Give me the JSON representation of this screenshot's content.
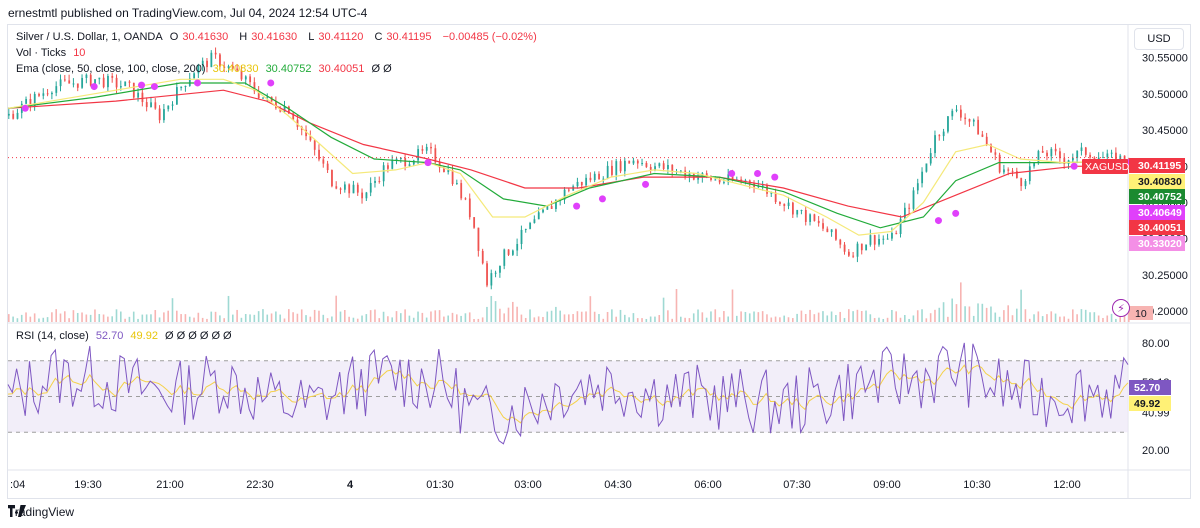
{
  "header": {
    "publisher": "ernestmtl published on TradingView.com, Jul 04, 2024 12:54 UTC-4"
  },
  "currency_button": "USD",
  "footer": {
    "brand": "TradingView"
  },
  "legend": {
    "symbol": "Silver / U.S. Dollar, 1, OANDA",
    "o_label": "O",
    "o_value": "30.41630",
    "h_label": "H",
    "h_value": "30.41630",
    "l_label": "L",
    "l_value": "30.41120",
    "c_label": "C",
    "c_value": "30.41195",
    "change": "−0.00485 (−0.02%)",
    "vol_label": "Vol · Ticks",
    "vol_value": "10",
    "ema_label": "Ema (close, 50, close, 100, close, 200)",
    "ema_values": [
      "30.40830",
      "30.40752",
      "30.40051"
    ],
    "ema_extra": "Ø  Ø",
    "rsi_label": "RSI (14, close)",
    "rsi_value": "52.70",
    "rsi_ma": "49.92",
    "rsi_extra": "Ø  Ø  Ø  Ø  Ø  Ø"
  },
  "colors": {
    "up": "#26a69a",
    "down": "#ef5350",
    "ema50": "#f5e97a",
    "ema100": "#22ab3a",
    "ema200": "#f23645",
    "rsi": "#7e57c2",
    "rsi_ma": "#f5d14a",
    "marker": "#e040fb"
  },
  "chart_data": {
    "type": "candlestick",
    "symbol_tag": "XAGUSD",
    "price_axis": {
      "ticks": [
        "30.55000",
        "30.50000",
        "30.45000",
        "30.40000",
        "30.35000",
        "30.30000",
        "30.25000",
        "30.20000"
      ],
      "values": [
        30.55,
        30.5,
        30.45,
        30.4,
        30.35,
        30.3,
        30.25,
        30.2
      ],
      "ylim": [
        30.185,
        30.595
      ]
    },
    "price_labels": [
      {
        "text": "XAGUSD",
        "value": 30.41195,
        "color": "#f23645",
        "tag": true
      },
      {
        "text": "30.41195",
        "value": 30.41195,
        "color": "#f23645"
      },
      {
        "text": "30.40830",
        "value": 30.4083,
        "color": "#fff176",
        "fg": "#131722"
      },
      {
        "text": "30.40752",
        "value": 30.40752,
        "color": "#1b8a30"
      },
      {
        "text": "30.40649",
        "value": 30.40649,
        "color": "#e040fb"
      },
      {
        "text": "30.40051",
        "value": 30.40051,
        "color": "#f23645"
      },
      {
        "text": "30.33020",
        "value": 30.3302,
        "color": "#f48fe6"
      }
    ],
    "volume_label": "10",
    "rsi_axis": {
      "ticks": [
        "80.00",
        "58.13",
        "40.99",
        "20.00"
      ],
      "values": [
        80,
        58.13,
        40.99,
        20
      ],
      "ylim": [
        10,
        90
      ],
      "upper": 70,
      "middle": 50,
      "lower": 30
    },
    "rsi_labels": [
      {
        "text": "52.70",
        "value": 52.7,
        "color": "#7e57c2"
      },
      {
        "text": "49.92",
        "value": 49.92,
        "color": "#fff176",
        "fg": "#131722"
      }
    ],
    "time_axis": {
      "labels": [
        ":04",
        "19:30",
        "21:00",
        "22:30",
        "4",
        "01:30",
        "03:00",
        "04:30",
        "06:00",
        "07:30",
        "09:00",
        "10:30",
        "12:00"
      ],
      "bold": [
        false,
        false,
        false,
        false,
        true,
        false,
        false,
        false,
        false,
        false,
        false,
        false,
        false
      ]
    },
    "price_path": [
      [
        0,
        30.47
      ],
      [
        20,
        30.51
      ],
      [
        40,
        30.52
      ],
      [
        55,
        30.51
      ],
      [
        70,
        30.47
      ],
      [
        85,
        30.53
      ],
      [
        95,
        30.55
      ],
      [
        105,
        30.53
      ],
      [
        120,
        30.49
      ],
      [
        130,
        30.48
      ],
      [
        140,
        30.43
      ],
      [
        150,
        30.38
      ],
      [
        165,
        30.36
      ],
      [
        175,
        30.4
      ],
      [
        185,
        30.41
      ],
      [
        195,
        30.42
      ],
      [
        205,
        30.39
      ],
      [
        215,
        30.33
      ],
      [
        222,
        30.24
      ],
      [
        228,
        30.27
      ],
      [
        240,
        30.31
      ],
      [
        260,
        30.37
      ],
      [
        275,
        30.39
      ],
      [
        290,
        30.41
      ],
      [
        300,
        30.4
      ],
      [
        315,
        30.39
      ],
      [
        330,
        30.38
      ],
      [
        345,
        30.38
      ],
      [
        355,
        30.36
      ],
      [
        370,
        30.33
      ],
      [
        380,
        30.31
      ],
      [
        390,
        30.28
      ],
      [
        400,
        30.3
      ],
      [
        410,
        30.3
      ],
      [
        420,
        30.36
      ],
      [
        430,
        30.44
      ],
      [
        440,
        30.48
      ],
      [
        450,
        30.45
      ],
      [
        460,
        30.4
      ],
      [
        470,
        30.38
      ],
      [
        480,
        30.42
      ],
      [
        490,
        30.41
      ],
      [
        500,
        30.42
      ],
      [
        510,
        30.41
      ],
      [
        520,
        30.41
      ]
    ],
    "ema50_path": [
      [
        0,
        30.48
      ],
      [
        40,
        30.5
      ],
      [
        80,
        30.52
      ],
      [
        100,
        30.52
      ],
      [
        115,
        30.505
      ],
      [
        130,
        30.47
      ],
      [
        145,
        30.43
      ],
      [
        160,
        30.39
      ],
      [
        180,
        30.395
      ],
      [
        195,
        30.405
      ],
      [
        210,
        30.39
      ],
      [
        225,
        30.33
      ],
      [
        240,
        30.33
      ],
      [
        260,
        30.36
      ],
      [
        280,
        30.385
      ],
      [
        300,
        30.395
      ],
      [
        320,
        30.39
      ],
      [
        340,
        30.375
      ],
      [
        360,
        30.36
      ],
      [
        380,
        30.33
      ],
      [
        395,
        30.305
      ],
      [
        410,
        30.31
      ],
      [
        425,
        30.35
      ],
      [
        440,
        30.42
      ],
      [
        455,
        30.43
      ],
      [
        470,
        30.41
      ],
      [
        490,
        30.405
      ],
      [
        520,
        30.408
      ]
    ],
    "ema100_path": [
      [
        0,
        30.48
      ],
      [
        40,
        30.495
      ],
      [
        80,
        30.515
      ],
      [
        110,
        30.515
      ],
      [
        130,
        30.48
      ],
      [
        150,
        30.44
      ],
      [
        170,
        30.41
      ],
      [
        195,
        30.405
      ],
      [
        210,
        30.395
      ],
      [
        230,
        30.355
      ],
      [
        250,
        30.345
      ],
      [
        270,
        30.37
      ],
      [
        300,
        30.39
      ],
      [
        330,
        30.385
      ],
      [
        360,
        30.365
      ],
      [
        385,
        30.335
      ],
      [
        405,
        30.315
      ],
      [
        425,
        30.33
      ],
      [
        440,
        30.38
      ],
      [
        460,
        30.405
      ],
      [
        490,
        30.405
      ],
      [
        520,
        30.4075
      ]
    ],
    "ema200_path": [
      [
        0,
        30.48
      ],
      [
        50,
        30.49
      ],
      [
        100,
        30.505
      ],
      [
        120,
        30.49
      ],
      [
        140,
        30.46
      ],
      [
        165,
        30.43
      ],
      [
        195,
        30.41
      ],
      [
        215,
        30.395
      ],
      [
        240,
        30.37
      ],
      [
        265,
        30.37
      ],
      [
        295,
        30.385
      ],
      [
        330,
        30.385
      ],
      [
        360,
        30.37
      ],
      [
        390,
        30.345
      ],
      [
        415,
        30.33
      ],
      [
        440,
        30.36
      ],
      [
        465,
        30.39
      ],
      [
        495,
        30.4
      ],
      [
        520,
        30.4005
      ]
    ],
    "markers": [
      [
        8,
        30.48
      ],
      [
        40,
        30.51
      ],
      [
        62,
        30.512
      ],
      [
        68,
        30.51
      ],
      [
        88,
        30.515
      ],
      [
        122,
        30.515
      ],
      [
        195,
        30.405
      ],
      [
        264,
        30.345
      ],
      [
        276,
        30.355
      ],
      [
        296,
        30.375
      ],
      [
        336,
        30.39
      ],
      [
        348,
        30.39
      ],
      [
        356,
        30.385
      ],
      [
        432,
        30.325
      ],
      [
        440,
        30.335
      ],
      [
        495,
        30.4
      ],
      [
        510,
        30.405
      ],
      [
        520,
        30.405
      ]
    ],
    "rsi_path": [
      [
        0,
        48
      ],
      [
        20,
        62
      ],
      [
        40,
        60
      ],
      [
        60,
        55
      ],
      [
        80,
        52
      ],
      [
        100,
        60
      ],
      [
        120,
        48
      ],
      [
        140,
        44
      ],
      [
        160,
        56
      ],
      [
        180,
        62
      ],
      [
        200,
        58
      ],
      [
        220,
        38
      ],
      [
        240,
        45
      ],
      [
        260,
        56
      ],
      [
        280,
        58
      ],
      [
        300,
        52
      ],
      [
        320,
        50
      ],
      [
        340,
        48
      ],
      [
        360,
        45
      ],
      [
        380,
        50
      ],
      [
        400,
        58
      ],
      [
        420,
        60
      ],
      [
        440,
        66
      ],
      [
        460,
        55
      ],
      [
        480,
        50
      ],
      [
        500,
        54
      ],
      [
        520,
        52.7
      ]
    ]
  }
}
